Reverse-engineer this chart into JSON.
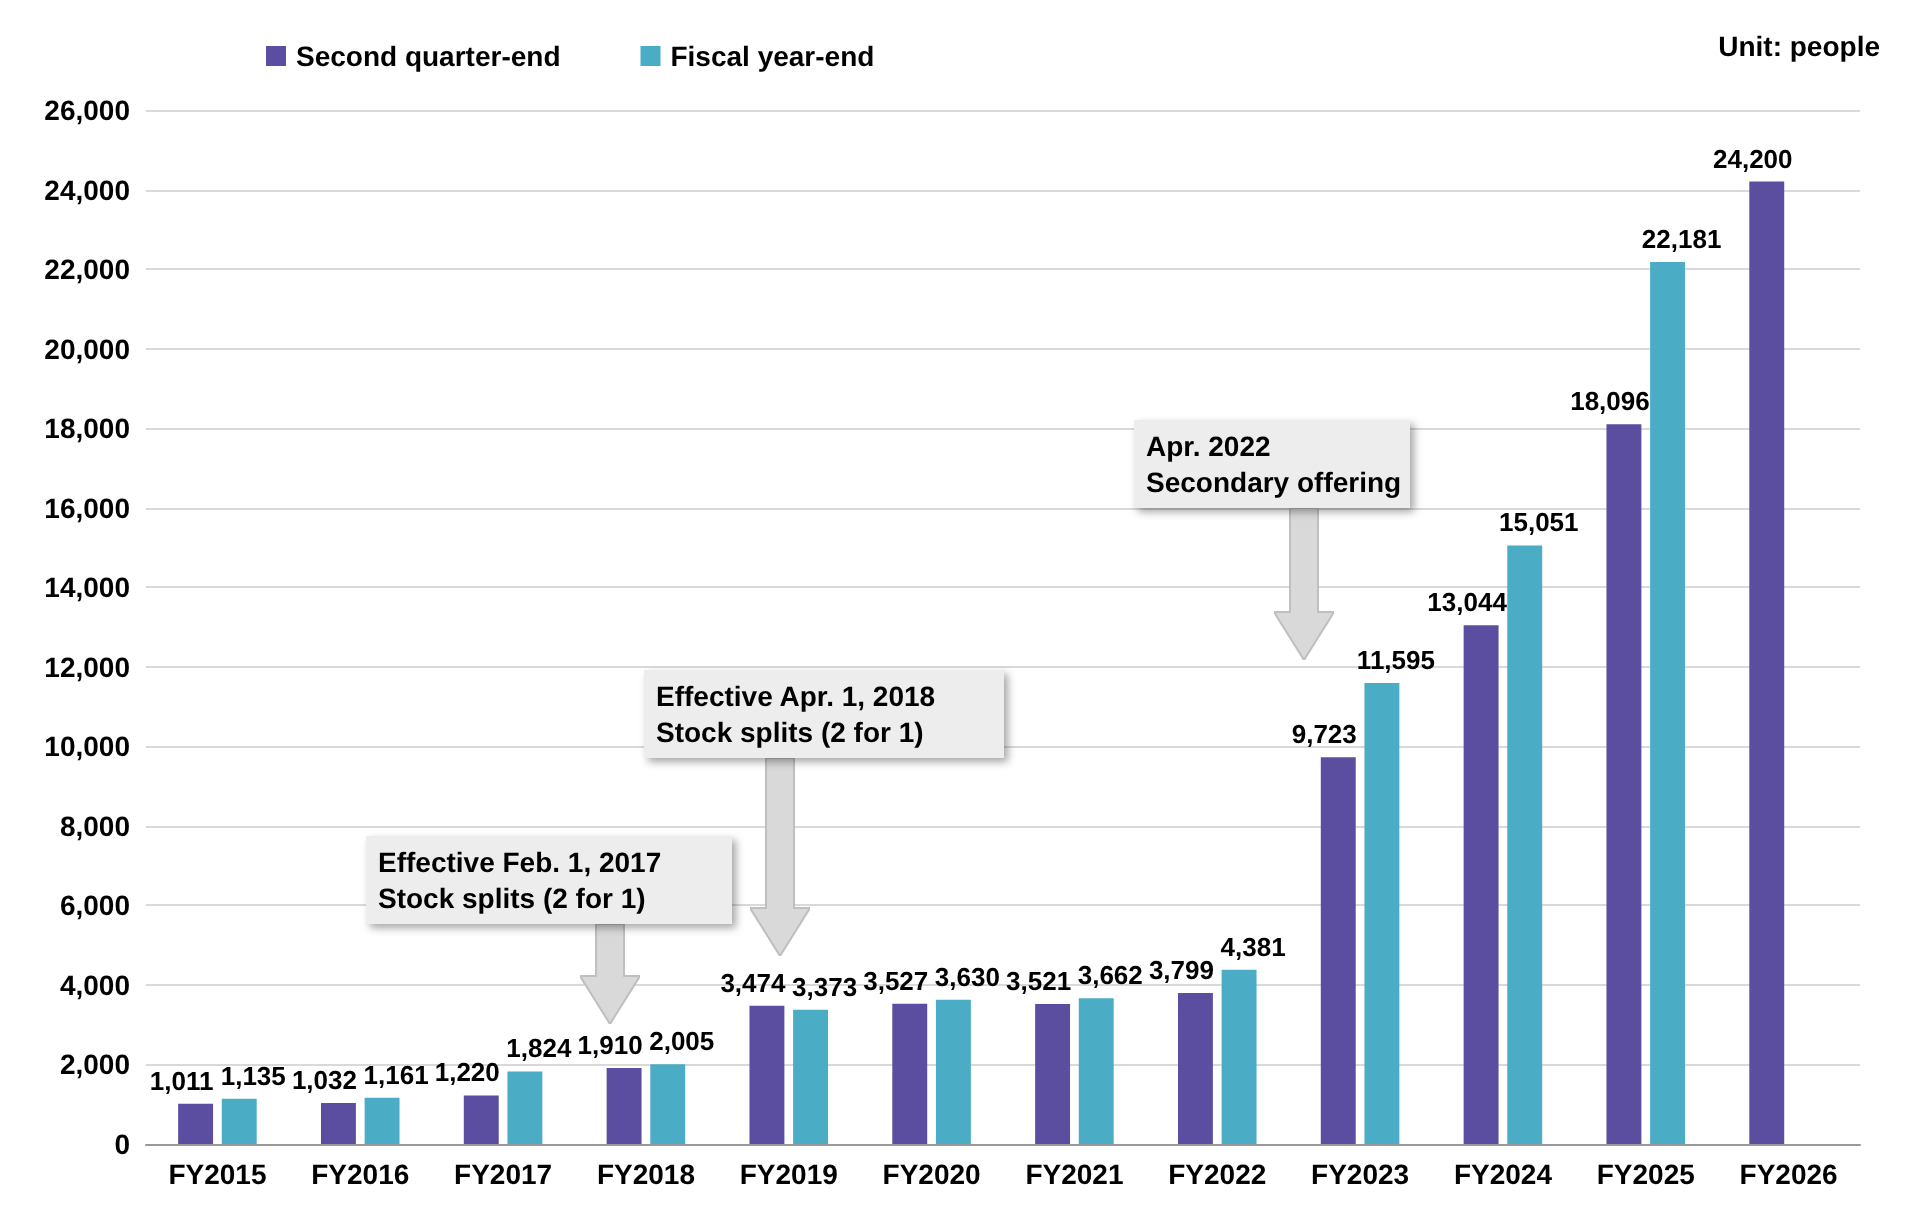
{
  "chart_data": {
    "type": "bar",
    "categories": [
      "FY2015",
      "FY2016",
      "FY2017",
      "FY2018",
      "FY2019",
      "FY2020",
      "FY2021",
      "FY2022",
      "FY2023",
      "FY2024",
      "FY2025",
      "FY2026"
    ],
    "series": [
      {
        "name": "Second quarter-end",
        "color": "#5b4ea0",
        "values": [
          1011,
          1032,
          1220,
          1910,
          3474,
          3527,
          3521,
          3799,
          9723,
          13044,
          18096,
          24200
        ],
        "value_labels": [
          "1,011",
          "1,032",
          "1,220",
          "1,910",
          "3,474",
          "3,527",
          "3,521",
          "3,799",
          "9,723",
          "13,044",
          "18,096",
          "24,200"
        ]
      },
      {
        "name": "Fiscal year-end",
        "color": "#4bacc6",
        "values": [
          1135,
          1161,
          1824,
          2005,
          3373,
          3630,
          3662,
          4381,
          11595,
          15051,
          22181,
          null
        ],
        "value_labels": [
          "1,135",
          "1,161",
          "1,824",
          "2,005",
          "3,373",
          "3,630",
          "3,662",
          "4,381",
          "11,595",
          "15,051",
          "22,181",
          null
        ]
      }
    ],
    "ylim": [
      0,
      26000
    ],
    "yticks": [
      {
        "value": 0,
        "label": "0"
      },
      {
        "value": 2000,
        "label": "2,000"
      },
      {
        "value": 4000,
        "label": "4,000"
      },
      {
        "value": 6000,
        "label": "6,000"
      },
      {
        "value": 8000,
        "label": "8,000"
      },
      {
        "value": 10000,
        "label": "10,000"
      },
      {
        "value": 12000,
        "label": "12,000"
      },
      {
        "value": 14000,
        "label": "14,000"
      },
      {
        "value": 16000,
        "label": "16,000"
      },
      {
        "value": 18000,
        "label": "18,000"
      },
      {
        "value": 20000,
        "label": "20,000"
      },
      {
        "value": 22000,
        "label": "22,000"
      },
      {
        "value": 24000,
        "label": "24,000"
      },
      {
        "value": 26000,
        "label": "26,000"
      }
    ],
    "grid": "y",
    "legend": "top left",
    "annotations": [
      "Unit: people",
      "Effective Feb. 1, 2017\nStock splits (2 for 1)",
      "Effective Apr. 1, 2018\nStock splits (2 for 1)",
      "Apr. 2022\nSecondary offering"
    ]
  }
}
